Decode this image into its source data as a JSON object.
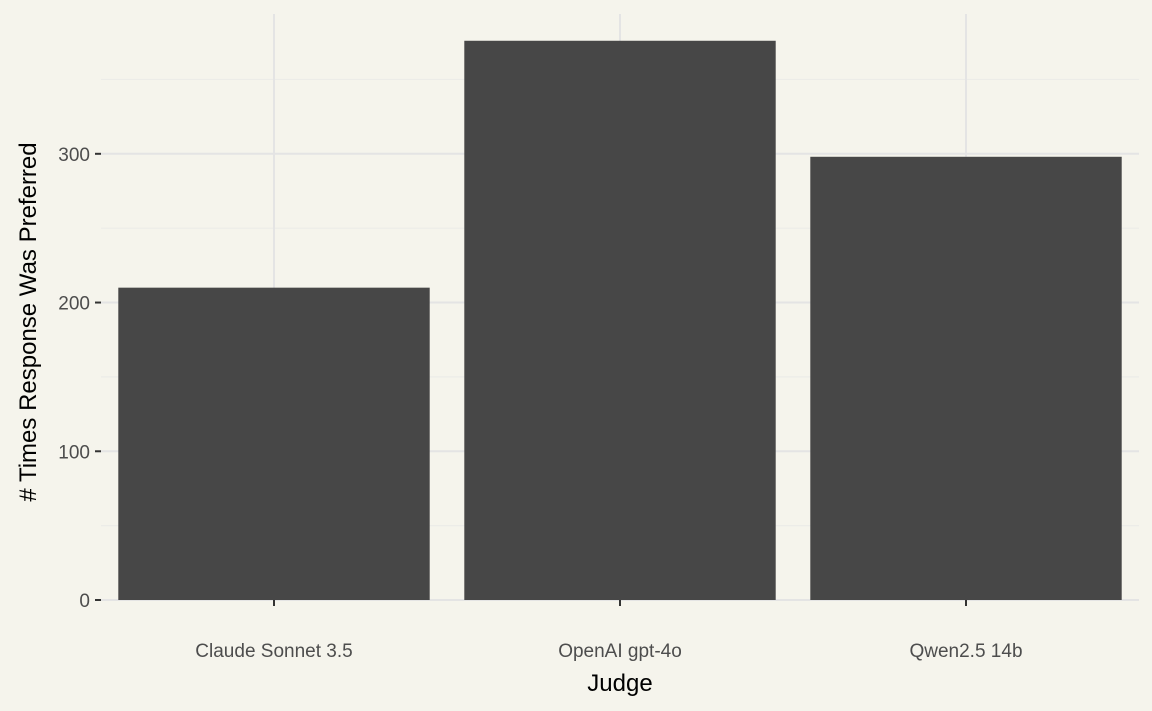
{
  "chart_data": {
    "type": "bar",
    "title": "",
    "xlabel": "Judge",
    "ylabel": "# Times Response Was Preferred",
    "categories": [
      "Claude Sonnet 3.5",
      "OpenAI gpt-4o",
      "Qwen2.5 14b"
    ],
    "values": [
      210,
      376,
      298
    ],
    "ylim": [
      0,
      394
    ],
    "yticks": [
      0,
      100,
      200,
      300
    ],
    "ytick_labels": [
      "0",
      "100",
      "200",
      "300"
    ],
    "grid": true,
    "legend": "none",
    "colors": {
      "background": "#f5f4ec",
      "bar": "#474747",
      "grid_major": "#e4e4e4",
      "grid_minor": "#ecece8",
      "tick": "#333333"
    }
  }
}
